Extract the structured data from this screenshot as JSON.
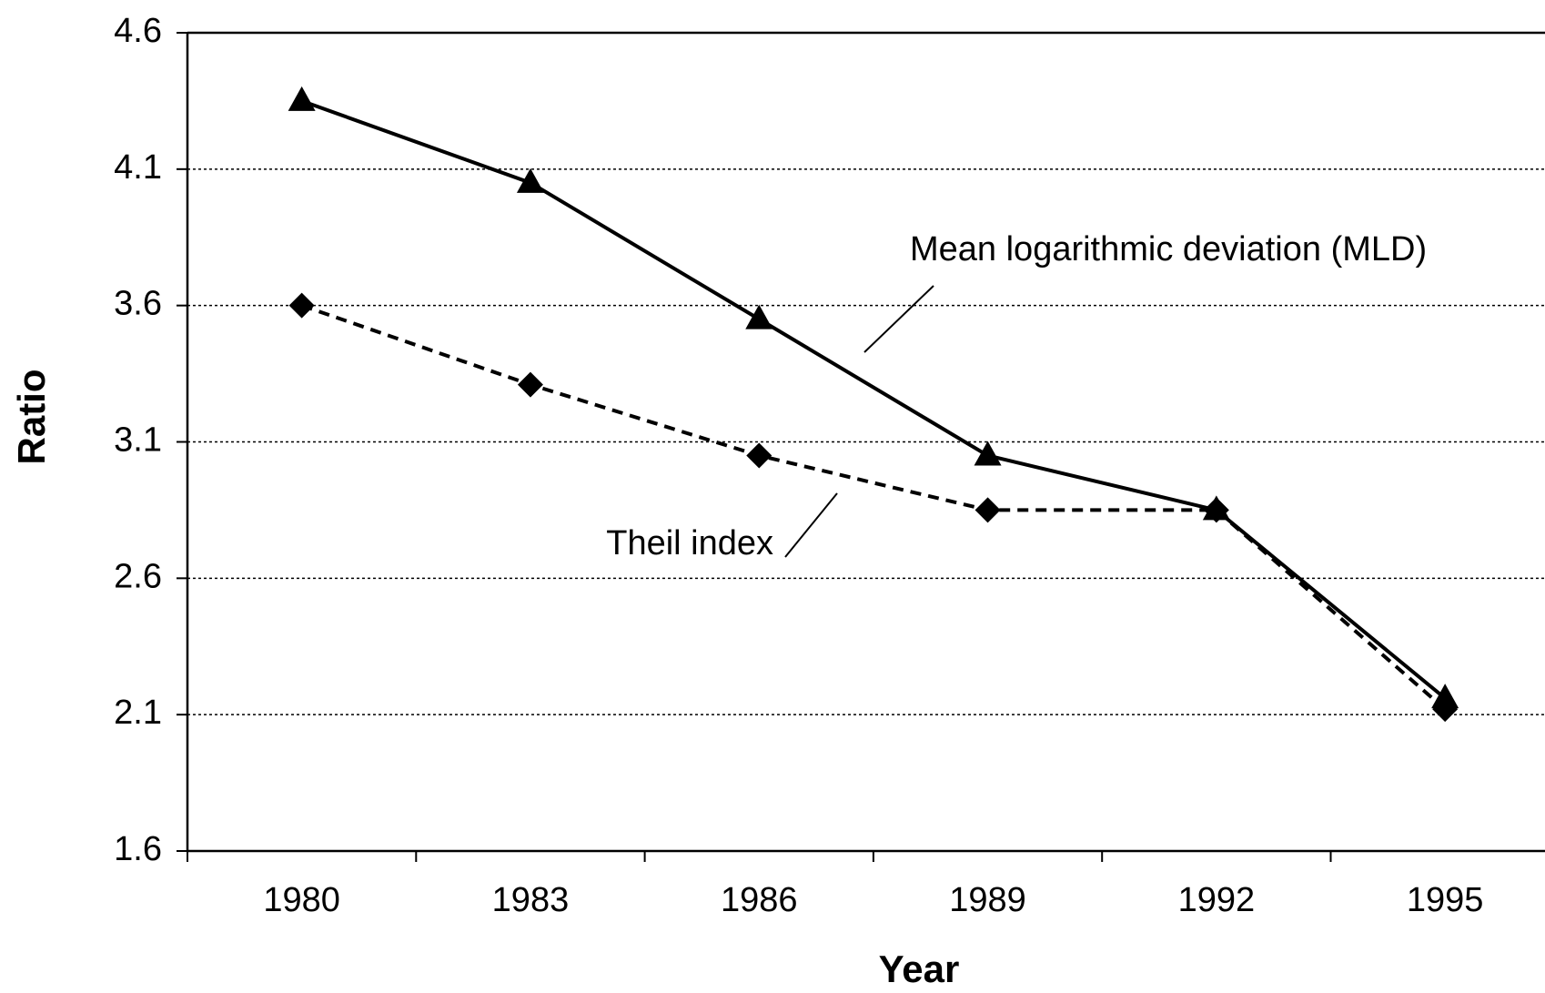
{
  "chart_data": {
    "type": "line",
    "x_label": "Year",
    "y_label": "Ratio",
    "categories": [
      "1980",
      "1983",
      "1986",
      "1989",
      "1992",
      "1995"
    ],
    "series": [
      {
        "name": "Mean logarithmic deviation (MLD)",
        "color": "#000000",
        "marker": "triangle",
        "dash": "solid",
        "values": [
          4.35,
          4.05,
          3.55,
          3.05,
          2.85,
          2.16
        ]
      },
      {
        "name": "Theil index",
        "color": "#000000",
        "marker": "diamond",
        "dash": "dashed",
        "values": [
          3.6,
          3.31,
          3.05,
          2.85,
          2.85,
          2.12
        ]
      }
    ],
    "ylim": [
      1.6,
      4.6
    ],
    "yticks": [
      1.6,
      2.1,
      2.6,
      3.1,
      3.6,
      4.1,
      4.6
    ],
    "grid": true
  }
}
